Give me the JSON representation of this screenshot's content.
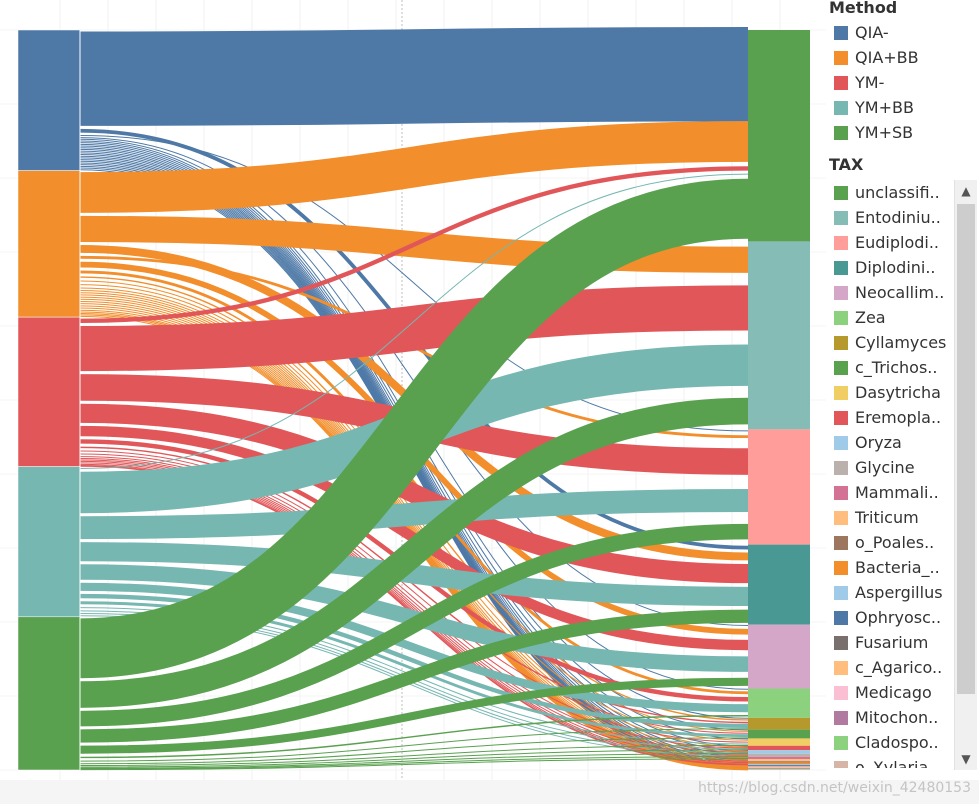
{
  "legend": {
    "method_title": "Method",
    "tax_title": "TAX",
    "scroll_up": "▲",
    "scroll_down": "▼"
  },
  "watermark": "https://blog.csdn.net/weixin_42480153",
  "chart_data": {
    "type": "sankey",
    "title": "",
    "methods": [
      {
        "name": "QIA-",
        "color": "#4e79a7",
        "share": 0.19
      },
      {
        "name": "QIA+BB",
        "color": "#f28e2b",
        "share": 0.198
      },
      {
        "name": "YM-",
        "color": "#e15759",
        "share": 0.202
      },
      {
        "name": "YM+BB",
        "color": "#76b7b2",
        "share": 0.203
      },
      {
        "name": "YM+SB",
        "color": "#59a14f",
        "share": 0.207
      }
    ],
    "taxa": [
      {
        "name": "unclassifi..",
        "color": "#59a14f",
        "share": 0.288
      },
      {
        "name": "Entodiniu..",
        "color": "#86bcb6",
        "share": 0.256
      },
      {
        "name": "Eudiplodi..",
        "color": "#ff9d9a",
        "share": 0.157
      },
      {
        "name": "Diplodini..",
        "color": "#499894",
        "share": 0.109
      },
      {
        "name": "Neocallim..",
        "color": "#d4a6c8",
        "share": 0.087
      },
      {
        "name": "Zea",
        "color": "#8cd17d",
        "share": 0.04
      },
      {
        "name": "Cyllamyces",
        "color": "#b6992d",
        "share": 0.016
      },
      {
        "name": "c_Trichos..",
        "color": "#59a14f",
        "share": 0.012
      },
      {
        "name": "Dasytricha",
        "color": "#f1ce63",
        "share": 0.01
      },
      {
        "name": "Eremopla..",
        "color": "#e15759",
        "share": 0.006
      },
      {
        "name": "Oryza",
        "color": "#a0cbe8",
        "share": 0.005
      },
      {
        "name": "Glycine",
        "color": "#bab0ac",
        "share": 0.004
      },
      {
        "name": "Mammali..",
        "color": "#d37295",
        "share": 0.003
      },
      {
        "name": "Triticum",
        "color": "#ffbe7d",
        "share": 0.003
      },
      {
        "name": "o_Poales..",
        "color": "#9d7660",
        "share": 0.002
      },
      {
        "name": "Bacteria_..",
        "color": "#f28e2b",
        "share": 0.002
      },
      {
        "name": "Aspergillus",
        "color": "#a0cbe8",
        "share": 0.001
      },
      {
        "name": "Ophryosc..",
        "color": "#4e79a7",
        "share": 0.001
      },
      {
        "name": "Fusarium",
        "color": "#79706e",
        "share": 0.001
      },
      {
        "name": "c_Agarico..",
        "color": "#ffbe7d",
        "share": 0.001
      },
      {
        "name": "Medicago",
        "color": "#fabfd2",
        "share": 0.001
      },
      {
        "name": "Mitochon..",
        "color": "#b07aa1",
        "share": 0.001
      },
      {
        "name": "Cladospo..",
        "color": "#8cd17d",
        "share": 0.001
      },
      {
        "name": "o_Xylaria..",
        "color": "#d7b5a6",
        "share": 0.001
      }
    ],
    "flows": {
      "QIA-": [
        [
          "unclassifi..",
          0.115
        ],
        [
          "Diplodini..",
          0.008
        ],
        [
          "Eudiplodi..",
          0.003
        ],
        [
          "Neocallim..",
          0.002
        ],
        [
          "Zea",
          0.002
        ],
        [
          "Cyllamyces",
          0.002
        ],
        [
          "c_Trichos..",
          0.002
        ],
        [
          "Dasytricha",
          0.002
        ],
        [
          "Eremopla..",
          0.002
        ],
        [
          "Oryza",
          0.002
        ],
        [
          "Glycine",
          0.002
        ],
        [
          "Mammali..",
          0.002
        ],
        [
          "Triticum",
          0.002
        ],
        [
          "o_Poales..",
          0.002
        ],
        [
          "Bacteria_..",
          0.002
        ],
        [
          "Aspergillus",
          0.002
        ],
        [
          "Ophryosc..",
          0.002
        ],
        [
          "Fusarium",
          0.002
        ],
        [
          "c_Agarico..",
          0.002
        ],
        [
          "Medicago",
          0.002
        ],
        [
          "Mitochon..",
          0.002
        ],
        [
          "Cladospo..",
          0.002
        ],
        [
          "o_Xylaria..",
          0.002
        ]
      ],
      "QIA+BB": [
        [
          "unclassifi..",
          0.06
        ],
        [
          "Entodiniu..",
          0.04
        ],
        [
          "Diplodini..",
          0.015
        ],
        [
          "Eudiplodi..",
          0.008
        ],
        [
          "Neocallim..",
          0.012
        ],
        [
          "Zea",
          0.008
        ],
        [
          "Cyllamyces",
          0.006
        ],
        [
          "c_Trichos..",
          0.005
        ],
        [
          "Dasytricha",
          0.005
        ],
        [
          "Eremopla..",
          0.004
        ],
        [
          "Oryza",
          0.003
        ],
        [
          "Glycine",
          0.003
        ],
        [
          "Mammali..",
          0.003
        ],
        [
          "Triticum",
          0.003
        ],
        [
          "o_Poales..",
          0.003
        ],
        [
          "Bacteria_..",
          0.003
        ],
        [
          "Aspergillus",
          0.003
        ],
        [
          "Ophryosc..",
          0.003
        ],
        [
          "Fusarium",
          0.003
        ],
        [
          "c_Agarico..",
          0.003
        ],
        [
          "Medicago",
          0.002
        ],
        [
          "Mitochon..",
          0.002
        ],
        [
          "Cladospo..",
          0.002
        ],
        [
          "o_Xylaria..",
          0.002
        ]
      ],
      "YM-": [
        [
          "unclassifi..",
          0.01
        ],
        [
          "Entodiniu..",
          0.065
        ],
        [
          "Eudiplodi..",
          0.04
        ],
        [
          "Diplodini..",
          0.03
        ],
        [
          "Neocallim..",
          0.018
        ],
        [
          "Zea",
          0.01
        ],
        [
          "Cyllamyces",
          0.006
        ],
        [
          "c_Trichos..",
          0.004
        ],
        [
          "Dasytricha",
          0.004
        ],
        [
          "Eremopla..",
          0.003
        ],
        [
          "Oryza",
          0.002
        ],
        [
          "Glycine",
          0.002
        ],
        [
          "Mammali..",
          0.002
        ],
        [
          "Triticum",
          0.002
        ],
        [
          "o_Poales..",
          0.002
        ],
        [
          "Bacteria_..",
          0.001
        ],
        [
          "Aspergillus",
          0.001
        ]
      ],
      "YM+BB": [
        [
          "unclassifi..",
          0.005
        ],
        [
          "Entodiniu..",
          0.06
        ],
        [
          "Eudiplodi..",
          0.035
        ],
        [
          "Diplodini..",
          0.03
        ],
        [
          "Neocallim..",
          0.025
        ],
        [
          "Zea",
          0.015
        ],
        [
          "Cyllamyces",
          0.01
        ],
        [
          "c_Trichos..",
          0.008
        ],
        [
          "Dasytricha",
          0.005
        ],
        [
          "Eremopla..",
          0.004
        ],
        [
          "Oryza",
          0.003
        ],
        [
          "Glycine",
          0.003
        ]
      ],
      "YM+SB": [
        [
          "unclassifi..",
          0.085
        ],
        [
          "Entodiniu..",
          0.04
        ],
        [
          "Eudiplodi..",
          0.025
        ],
        [
          "Diplodini..",
          0.022
        ],
        [
          "Neocallim..",
          0.015
        ],
        [
          "Zea",
          0.006
        ],
        [
          "Cyllamyces",
          0.004
        ],
        [
          "c_Trichos..",
          0.003
        ],
        [
          "Dasytricha",
          0.002
        ],
        [
          "Eremopla..",
          0.002
        ],
        [
          "Oryza",
          0.001
        ],
        [
          "Glycine",
          0.001
        ],
        [
          "Mammali..",
          0.001
        ]
      ]
    }
  }
}
